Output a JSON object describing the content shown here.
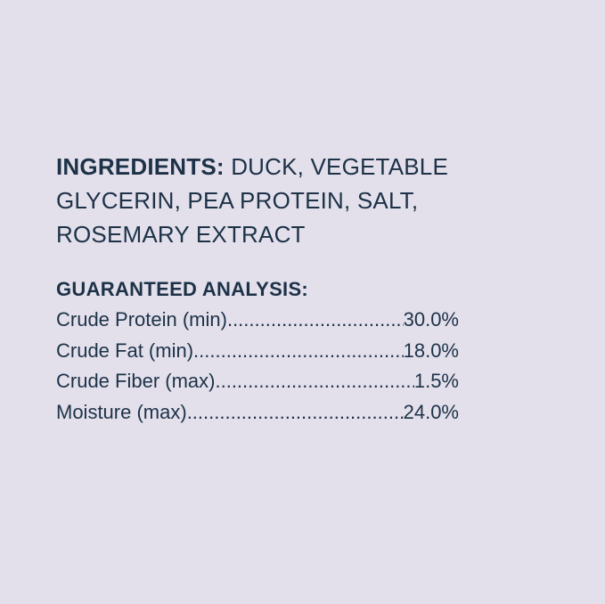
{
  "ingredients": {
    "label": "INGREDIENTS:",
    "text": "DUCK, VEGETABLE GLYCERIN, PEA PROTEIN, SALT, ROSEMARY EXTRACT"
  },
  "analysis": {
    "title": "GUARANTEED ANALYSIS:",
    "rows": [
      {
        "label": "Crude Protein (min)",
        "value": "30.0%"
      },
      {
        "label": "Crude Fat (min)",
        "value": "18.0%"
      },
      {
        "label": "Crude Fiber (max)",
        "value": "1.5%"
      },
      {
        "label": "Moisture (max)",
        "value": "24.0%"
      }
    ]
  },
  "colors": {
    "background": "#e3e0ec",
    "text": "#1d3247"
  }
}
